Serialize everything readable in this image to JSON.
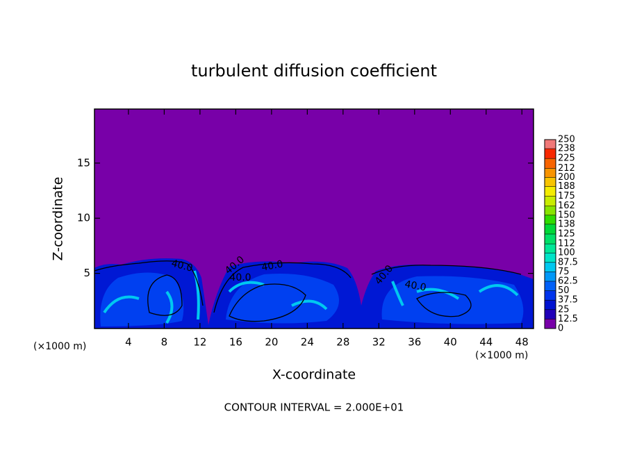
{
  "chart_data": {
    "type": "contour",
    "title": "turbulent diffusion coefficient",
    "xlabel": "X-coordinate",
    "ylabel": "Z-coordinate",
    "x_unit_left": "(×1000 m)",
    "x_unit_right": "(×1000 m)",
    "xlim": [
      0.2,
      49.3
    ],
    "xticks": [
      4,
      8,
      12,
      16,
      20,
      24,
      28,
      32,
      36,
      40,
      44,
      48
    ],
    "ylim": [
      0,
      19.9
    ],
    "yticks": [
      5,
      10,
      15
    ],
    "colorbar_levels": [
      0,
      12.5,
      25,
      37.5,
      50,
      62.5,
      75,
      87.5,
      100,
      112,
      125,
      138,
      150,
      162,
      175,
      188,
      200,
      212,
      225,
      238,
      250
    ],
    "colorbar_colors": [
      "#7800a8",
      "#2000b8",
      "#0012d0",
      "#0034ec",
      "#0060f8",
      "#0098f8",
      "#00c8f0",
      "#00e4c8",
      "#00e898",
      "#00e068",
      "#00d838",
      "#30dc00",
      "#88e400",
      "#c8ec00",
      "#f4ec00",
      "#f8c400",
      "#f89400",
      "#f86400",
      "#f82800",
      "#f07878"
    ],
    "contour_labels": [
      "40.0",
      "40.0",
      "40.0",
      "40.0",
      "40.0",
      "40.0"
    ],
    "footer": "CONTOUR INTERVAL = 2.000E+01"
  }
}
